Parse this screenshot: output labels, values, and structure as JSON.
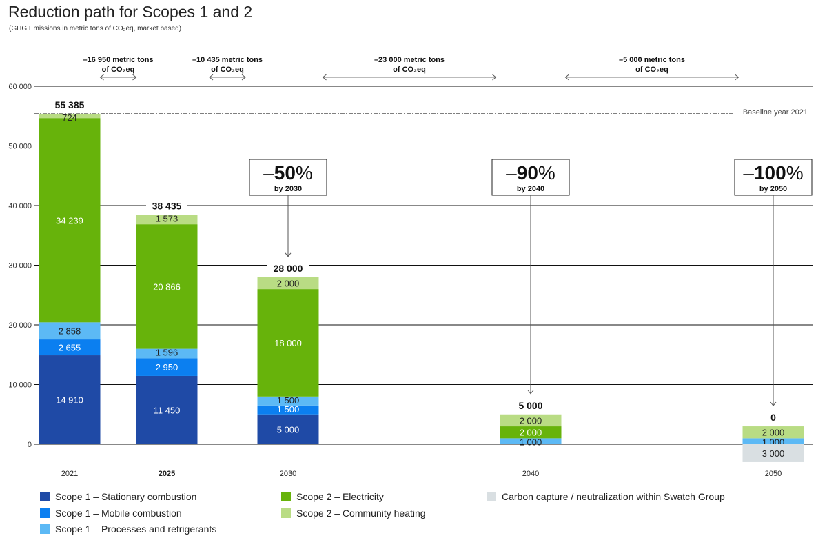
{
  "title": "Reduction path for Scopes 1 and 2",
  "subtitle": "(GHG Emissions in metric tons of CO₂eq, market based)",
  "chart_data": {
    "type": "bar",
    "stacked": true,
    "categories": [
      "2021",
      "2025",
      "2030",
      "2040",
      "2050"
    ],
    "bold_categories": [
      "2025"
    ],
    "ylim": [
      0,
      60000
    ],
    "yticks": [
      0,
      10000,
      20000,
      30000,
      40000,
      50000,
      60000
    ],
    "ytick_labels": [
      "0",
      "10 000",
      "20 000",
      "30 000",
      "40 000",
      "50 000",
      "60 000"
    ],
    "grid": true,
    "legend_position": "bottom",
    "series": [
      {
        "name": "Scope 1 – Stationary combustion",
        "color": "#1f4aa6",
        "values": [
          14910,
          11450,
          5000,
          0,
          0
        ],
        "labels": [
          "14 910",
          "11 450",
          "5 000",
          "",
          ""
        ]
      },
      {
        "name": "Scope 1 – Mobile combustion",
        "color": "#0b7ff0",
        "values": [
          2655,
          2950,
          1500,
          0,
          0
        ],
        "labels": [
          "2 655",
          "2 950",
          "1 500",
          "",
          ""
        ]
      },
      {
        "name": "Scope 1 – Processes and refrigerants",
        "color": "#5cb9f5",
        "values": [
          2858,
          1596,
          1500,
          1000,
          1000
        ],
        "labels": [
          "2 858",
          "1 596",
          "1 500",
          "1 000",
          "1 000"
        ]
      },
      {
        "name": "Scope 2 – Electricity",
        "color": "#67b30b",
        "values": [
          34239,
          20866,
          18000,
          2000,
          0
        ],
        "labels": [
          "34 239",
          "20 866",
          "18 000",
          "2 000",
          ""
        ]
      },
      {
        "name": "Scope 2 – Community heating",
        "color": "#b9dc84",
        "values": [
          724,
          1573,
          2000,
          2000,
          2000
        ],
        "labels": [
          "724",
          "1 573",
          "2 000",
          "2 000",
          "2 000"
        ]
      },
      {
        "name": "Carbon capture / neutralization within Swatch Group",
        "color": "#d9dfe2",
        "values": [
          0,
          0,
          0,
          0,
          -3000
        ],
        "labels": [
          "",
          "",
          "",
          "",
          "3 000"
        ]
      }
    ],
    "totals": [
      55385,
      38435,
      28000,
      5000,
      0
    ],
    "total_labels": [
      "55 385",
      "38 435",
      "28 000",
      "5 000",
      "0"
    ],
    "baseline": {
      "value": 55385,
      "label": "Baseline year 2021"
    },
    "reductions": [
      {
        "from": "2021",
        "to": "2025",
        "line1": "–16 950 metric tons",
        "line2": "of CO₂eq"
      },
      {
        "from": "2025",
        "to": "2030",
        "line1": "–10 435 metric tons",
        "line2": "of CO₂eq"
      },
      {
        "from": "2030",
        "to": "2040",
        "line1": "–23 000 metric tons",
        "line2": "of CO₂eq"
      },
      {
        "from": "2040",
        "to": "2050",
        "line1": "–5 000 metric tons",
        "line2": "of CO₂eq"
      }
    ],
    "targets": [
      {
        "category": "2030",
        "minus": "–",
        "value": "50",
        "pct": "%",
        "by": "by 2030"
      },
      {
        "category": "2040",
        "minus": "–",
        "value": "90",
        "pct": "%",
        "by": "by 2040"
      },
      {
        "category": "2050",
        "minus": "–",
        "value": "100",
        "pct": "%",
        "by": "by 2050"
      }
    ]
  }
}
